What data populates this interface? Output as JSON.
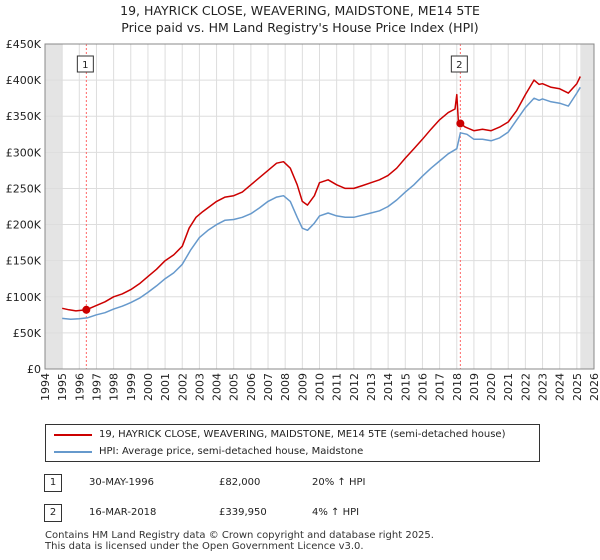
{
  "colors": {
    "property": "#cc0000",
    "hpi": "#6699cc",
    "grid": "#dddddd",
    "marker_line": "#ff6666",
    "future_band": "#e4e4e4"
  },
  "header": {
    "title": "19, HAYRICK CLOSE, WEAVERING, MAIDSTONE, ME14 5TE",
    "subtitle": "Price paid vs. HM Land Registry's House Price Index (HPI)"
  },
  "chart_data": {
    "type": "line",
    "title": "19, HAYRICK CLOSE, WEAVERING, MAIDSTONE, ME14 5TE",
    "subtitle": "Price paid vs. HM Land Registry's House Price Index (HPI)",
    "xlabel": "",
    "ylabel": "",
    "xlim": [
      1994,
      2026
    ],
    "ylim": [
      0,
      450000
    ],
    "x_ticks": [
      1994,
      1995,
      1996,
      1997,
      1998,
      1999,
      2000,
      2001,
      2002,
      2003,
      2004,
      2005,
      2006,
      2007,
      2008,
      2009,
      2010,
      2011,
      2012,
      2013,
      2014,
      2015,
      2016,
      2017,
      2018,
      2019,
      2020,
      2021,
      2022,
      2023,
      2024,
      2025,
      2026
    ],
    "y_ticks": [
      {
        "value": 0,
        "label": "£0"
      },
      {
        "value": 50000,
        "label": "£50K"
      },
      {
        "value": 100000,
        "label": "£100K"
      },
      {
        "value": 150000,
        "label": "£150K"
      },
      {
        "value": 200000,
        "label": "£200K"
      },
      {
        "value": 250000,
        "label": "£250K"
      },
      {
        "value": 300000,
        "label": "£300K"
      },
      {
        "value": 350000,
        "label": "£350K"
      },
      {
        "value": 400000,
        "label": "£400K"
      },
      {
        "value": 450000,
        "label": "£450K"
      }
    ],
    "grid": true,
    "data_start": 1995.0,
    "data_end": 2025.2,
    "series": [
      {
        "name": "19, HAYRICK CLOSE, WEAVERING, MAIDSTONE, ME14 5TE (semi-detached house)",
        "color": "#cc0000",
        "points": [
          [
            1995.0,
            84000
          ],
          [
            1995.4,
            82000
          ],
          [
            1995.8,
            80500
          ],
          [
            1996.41,
            82000
          ],
          [
            1997.0,
            88000
          ],
          [
            1997.5,
            93000
          ],
          [
            1998.0,
            100000
          ],
          [
            1998.5,
            104000
          ],
          [
            1999.0,
            110000
          ],
          [
            1999.5,
            118000
          ],
          [
            2000.0,
            128000
          ],
          [
            2000.5,
            138000
          ],
          [
            2001.0,
            150000
          ],
          [
            2001.5,
            158000
          ],
          [
            2002.0,
            170000
          ],
          [
            2002.4,
            195000
          ],
          [
            2002.8,
            210000
          ],
          [
            2003.2,
            218000
          ],
          [
            2003.6,
            225000
          ],
          [
            2004.0,
            232000
          ],
          [
            2004.5,
            238000
          ],
          [
            2005.0,
            240000
          ],
          [
            2005.5,
            245000
          ],
          [
            2006.0,
            255000
          ],
          [
            2006.5,
            265000
          ],
          [
            2007.0,
            275000
          ],
          [
            2007.5,
            285000
          ],
          [
            2007.9,
            287000
          ],
          [
            2008.3,
            278000
          ],
          [
            2008.7,
            255000
          ],
          [
            2009.0,
            232000
          ],
          [
            2009.3,
            227000
          ],
          [
            2009.7,
            240000
          ],
          [
            2010.0,
            258000
          ],
          [
            2010.5,
            262000
          ],
          [
            2011.0,
            255000
          ],
          [
            2011.5,
            250000
          ],
          [
            2012.0,
            250000
          ],
          [
            2012.5,
            254000
          ],
          [
            2013.0,
            258000
          ],
          [
            2013.5,
            262000
          ],
          [
            2014.0,
            268000
          ],
          [
            2014.5,
            278000
          ],
          [
            2015.0,
            292000
          ],
          [
            2015.5,
            305000
          ],
          [
            2016.0,
            318000
          ],
          [
            2016.5,
            332000
          ],
          [
            2017.0,
            345000
          ],
          [
            2017.5,
            355000
          ],
          [
            2017.9,
            360000
          ],
          [
            2018.0,
            380000
          ],
          [
            2018.1,
            340000
          ],
          [
            2018.21,
            339950
          ],
          [
            2018.5,
            335000
          ],
          [
            2019.0,
            330000
          ],
          [
            2019.5,
            332000
          ],
          [
            2020.0,
            330000
          ],
          [
            2020.5,
            335000
          ],
          [
            2021.0,
            342000
          ],
          [
            2021.5,
            358000
          ],
          [
            2022.0,
            380000
          ],
          [
            2022.5,
            400000
          ],
          [
            2022.8,
            394000
          ],
          [
            2023.0,
            395000
          ],
          [
            2023.5,
            390000
          ],
          [
            2024.0,
            388000
          ],
          [
            2024.5,
            382000
          ],
          [
            2025.0,
            395000
          ],
          [
            2025.2,
            405000
          ]
        ]
      },
      {
        "name": "HPI: Average price, semi-detached house, Maidstone",
        "color": "#6699cc",
        "points": [
          [
            1995.0,
            70000
          ],
          [
            1995.5,
            69000
          ],
          [
            1996.0,
            69500
          ],
          [
            1996.5,
            71000
          ],
          [
            1997.0,
            75000
          ],
          [
            1997.5,
            78000
          ],
          [
            1998.0,
            83000
          ],
          [
            1998.5,
            87000
          ],
          [
            1999.0,
            92000
          ],
          [
            1999.5,
            98000
          ],
          [
            2000.0,
            106000
          ],
          [
            2000.5,
            115000
          ],
          [
            2001.0,
            125000
          ],
          [
            2001.5,
            133000
          ],
          [
            2002.0,
            145000
          ],
          [
            2002.5,
            165000
          ],
          [
            2003.0,
            182000
          ],
          [
            2003.5,
            192000
          ],
          [
            2004.0,
            200000
          ],
          [
            2004.5,
            206000
          ],
          [
            2005.0,
            207000
          ],
          [
            2005.5,
            210000
          ],
          [
            2006.0,
            215000
          ],
          [
            2006.5,
            223000
          ],
          [
            2007.0,
            232000
          ],
          [
            2007.5,
            238000
          ],
          [
            2007.9,
            240000
          ],
          [
            2008.3,
            232000
          ],
          [
            2008.7,
            210000
          ],
          [
            2009.0,
            195000
          ],
          [
            2009.3,
            192000
          ],
          [
            2009.7,
            202000
          ],
          [
            2010.0,
            212000
          ],
          [
            2010.5,
            216000
          ],
          [
            2011.0,
            212000
          ],
          [
            2011.5,
            210000
          ],
          [
            2012.0,
            210000
          ],
          [
            2012.5,
            213000
          ],
          [
            2013.0,
            216000
          ],
          [
            2013.5,
            219000
          ],
          [
            2014.0,
            225000
          ],
          [
            2014.5,
            234000
          ],
          [
            2015.0,
            245000
          ],
          [
            2015.5,
            255000
          ],
          [
            2016.0,
            267000
          ],
          [
            2016.5,
            278000
          ],
          [
            2017.0,
            288000
          ],
          [
            2017.5,
            298000
          ],
          [
            2018.0,
            305000
          ],
          [
            2018.21,
            327000
          ],
          [
            2018.6,
            325000
          ],
          [
            2019.0,
            318000
          ],
          [
            2019.5,
            318000
          ],
          [
            2020.0,
            316000
          ],
          [
            2020.5,
            320000
          ],
          [
            2021.0,
            328000
          ],
          [
            2021.5,
            345000
          ],
          [
            2022.0,
            362000
          ],
          [
            2022.5,
            375000
          ],
          [
            2022.8,
            372000
          ],
          [
            2023.0,
            374000
          ],
          [
            2023.5,
            370000
          ],
          [
            2024.0,
            368000
          ],
          [
            2024.5,
            364000
          ],
          [
            2025.0,
            382000
          ],
          [
            2025.2,
            390000
          ]
        ]
      }
    ],
    "markers": [
      {
        "label": "1",
        "x": 1996.41,
        "y": 82000
      },
      {
        "label": "2",
        "x": 2018.21,
        "y": 339950
      }
    ]
  },
  "legend": {
    "items": [
      {
        "label": "19, HAYRICK CLOSE, WEAVERING, MAIDSTONE, ME14 5TE (semi-detached house)"
      },
      {
        "label": "HPI: Average price, semi-detached house, Maidstone"
      }
    ]
  },
  "transactions": [
    {
      "badge": "1",
      "date": "30-MAY-1996",
      "price": "£82,000",
      "hpi": "20% ↑ HPI"
    },
    {
      "badge": "2",
      "date": "16-MAR-2018",
      "price": "£339,950",
      "hpi": "4% ↑ HPI"
    }
  ],
  "footer": {
    "line1": "Contains HM Land Registry data © Crown copyright and database right 2025.",
    "line2": "This data is licensed under the Open Government Licence v3.0."
  }
}
